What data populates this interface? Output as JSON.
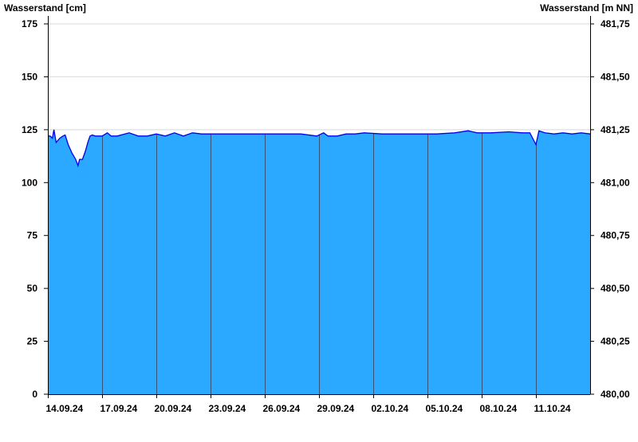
{
  "chart_data": {
    "type": "area",
    "ylabel_left": "Wasserstand [cm]",
    "ylabel_right": "Wasserstand [m NN]",
    "ylim": [
      0,
      175
    ],
    "yticks": [
      0,
      25,
      50,
      75,
      100,
      125,
      150,
      175
    ],
    "ytick_labels_right": [
      "480,00",
      "480,25",
      "480,50",
      "480,75",
      "481,00",
      "481,25",
      "481,50",
      "481,75"
    ],
    "xlim": [
      "2024-09-14T00:00",
      "2024-10-14T00:00"
    ],
    "xticks": [
      "2024-09-14",
      "2024-09-17",
      "2024-09-20",
      "2024-09-23",
      "2024-09-26",
      "2024-09-29",
      "2024-10-02",
      "2024-10-05",
      "2024-10-08",
      "2024-10-11"
    ],
    "xtick_labels": [
      "14.09.24",
      "17.09.24",
      "20.09.24",
      "23.09.24",
      "26.09.24",
      "29.09.24",
      "02.10.24",
      "05.10.24",
      "08.10.24",
      "11.10.24"
    ],
    "grid": "horizontal gridlines above data",
    "colors": {
      "fill": "#2ba8ff",
      "line": "#0000ee",
      "grid": "#d8d8d8",
      "date_lines": "#335577"
    },
    "series": [
      {
        "x": [
          "2024-09-14T00:00",
          "2024-09-14T03:00",
          "2024-09-14T06:00",
          "2024-09-14T08:00",
          "2024-09-14T11:00",
          "2024-09-14T16:00",
          "2024-09-14T20:00",
          "2024-09-14T23:00",
          "2024-09-15T03:00",
          "2024-09-15T08:00",
          "2024-09-15T13:00",
          "2024-09-15T16:00",
          "2024-09-15T18:00",
          "2024-09-15T22:00",
          "2024-09-16T02:00",
          "2024-09-16T05:00",
          "2024-09-16T08:00",
          "2024-09-16T11:00",
          "2024-09-16T15:00",
          "2024-09-17T00:00",
          "2024-09-17T07:00",
          "2024-09-17T12:00",
          "2024-09-17T20:00",
          "2024-09-18T12:00",
          "2024-09-19T00:00",
          "2024-09-19T12:00",
          "2024-09-20T00:00",
          "2024-09-20T12:00",
          "2024-09-21T00:00",
          "2024-09-21T12:00",
          "2024-09-22T00:00",
          "2024-09-22T12:00",
          "2024-09-23T00:00",
          "2024-09-24T00:00",
          "2024-09-25T00:00",
          "2024-09-26T00:00",
          "2024-09-27T00:00",
          "2024-09-28T00:00",
          "2024-09-28T21:00",
          "2024-09-29T06:00",
          "2024-09-29T12:00",
          "2024-09-30T00:00",
          "2024-09-30T12:00",
          "2024-10-01T00:00",
          "2024-10-01T12:00",
          "2024-10-02T12:00",
          "2024-10-03T12:00",
          "2024-10-04T12:00",
          "2024-10-05T12:00",
          "2024-10-06T12:00",
          "2024-10-07T06:00",
          "2024-10-07T12:00",
          "2024-10-07T18:00",
          "2024-10-08T12:00",
          "2024-10-09T12:00",
          "2024-10-10T06:00",
          "2024-10-10T16:00",
          "2024-10-11T00:00",
          "2024-10-11T04:00",
          "2024-10-11T12:00",
          "2024-10-12T00:00",
          "2024-10-12T12:00",
          "2024-10-13T00:00",
          "2024-10-13T12:00",
          "2024-10-14T00:00"
        ],
        "values": [
          122,
          122,
          121,
          125,
          119,
          121,
          122,
          122.5,
          118,
          114,
          111,
          108,
          111,
          111,
          115,
          119,
          122,
          122.5,
          122,
          122,
          123.5,
          122,
          122,
          123.5,
          122,
          122,
          123,
          122,
          123.5,
          122,
          123.5,
          123,
          123,
          123,
          123,
          123,
          123,
          123,
          122,
          123.5,
          122,
          122,
          123,
          123,
          123.5,
          123,
          123,
          123,
          123,
          123.5,
          124.5,
          124,
          123.5,
          123.5,
          124,
          123.5,
          123.5,
          118,
          124.5,
          123.5,
          123,
          123.5,
          123,
          123.5,
          123
        ]
      }
    ]
  }
}
